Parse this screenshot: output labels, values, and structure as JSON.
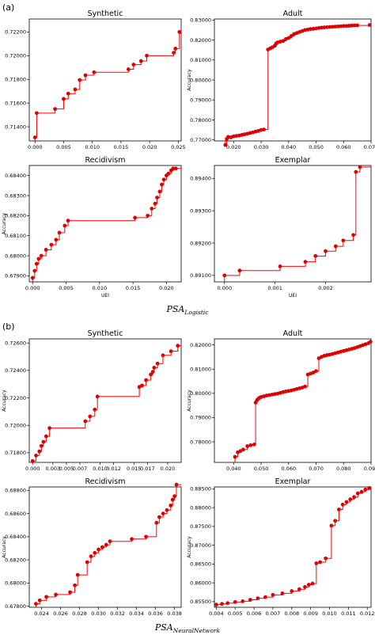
{
  "panels": [
    {
      "label": "(a)",
      "caption_main": "PSA",
      "caption_sub": "Logistic"
    },
    {
      "label": "(b)",
      "caption_main": "PSA",
      "caption_sub": "NeuralNetwork"
    }
  ],
  "style": {
    "line_color": "#ff0000",
    "marker_color": "#e00000"
  },
  "chart_data": [
    {
      "type": "line",
      "title": "Synthetic",
      "xlabel": "",
      "ylabel": "",
      "xlim": [
        -0.001,
        0.0255
      ],
      "ylim": [
        0.7128,
        0.7231
      ],
      "xticks": [
        0.0,
        0.005,
        0.01,
        0.015,
        0.02,
        0.025
      ],
      "xtick_labels": [
        "0.000",
        "0.005",
        "0.010",
        "0.015",
        "0.020",
        "0.025"
      ],
      "yticks": [
        0.714,
        0.716,
        0.718,
        0.72,
        0.722
      ],
      "ytick_labels": [
        "0.71400",
        "0.71600",
        "0.71800",
        "0.72000",
        "0.72200"
      ],
      "x": [
        0.0,
        0.0003,
        0.0035,
        0.005,
        0.0058,
        0.007,
        0.0078,
        0.0088,
        0.0103,
        0.0163,
        0.0172,
        0.0185,
        0.0195,
        0.0242,
        0.0245,
        0.0252
      ],
      "y": [
        0.7131,
        0.71515,
        0.7155,
        0.71635,
        0.7168,
        0.71715,
        0.71795,
        0.71835,
        0.7186,
        0.71885,
        0.71925,
        0.71955,
        0.72,
        0.72025,
        0.7206,
        0.722
      ]
    },
    {
      "type": "line",
      "title": "Adult",
      "xlabel": "",
      "ylabel": "Accuracy",
      "xlim": [
        0.013,
        0.07
      ],
      "ylim": [
        0.7695,
        0.8305
      ],
      "xticks": [
        0.02,
        0.03,
        0.04,
        0.05,
        0.06,
        0.07
      ],
      "xtick_labels": [
        "0.020",
        "0.030",
        "0.040",
        "0.050",
        "0.060",
        "0.070"
      ],
      "yticks": [
        0.77,
        0.78,
        0.79,
        0.8,
        0.81,
        0.82,
        0.83
      ],
      "ytick_labels": [
        "0.77000",
        "0.78000",
        "0.79000",
        "0.80000",
        "0.81000",
        "0.82000",
        "0.83000"
      ],
      "x": [
        0.017,
        0.0175,
        0.018,
        0.019,
        0.02,
        0.021,
        0.022,
        0.023,
        0.024,
        0.025,
        0.026,
        0.027,
        0.028,
        0.029,
        0.03,
        0.031,
        0.0325,
        0.0333,
        0.034,
        0.035,
        0.0355,
        0.036,
        0.037,
        0.038,
        0.039,
        0.04,
        0.041,
        0.042,
        0.043,
        0.044,
        0.045,
        0.046,
        0.047,
        0.048,
        0.049,
        0.05,
        0.051,
        0.052,
        0.053,
        0.054,
        0.055,
        0.056,
        0.057,
        0.058,
        0.059,
        0.06,
        0.061,
        0.062,
        0.063,
        0.064,
        0.065,
        0.0695
      ],
      "y": [
        0.7675,
        0.7705,
        0.7715,
        0.7713,
        0.7718,
        0.772,
        0.7722,
        0.7725,
        0.7728,
        0.7731,
        0.7735,
        0.7738,
        0.7742,
        0.7745,
        0.775,
        0.7752,
        0.8152,
        0.8158,
        0.8163,
        0.8172,
        0.8183,
        0.8188,
        0.8192,
        0.8195,
        0.8205,
        0.821,
        0.822,
        0.823,
        0.8235,
        0.824,
        0.8245,
        0.825,
        0.8252,
        0.8255,
        0.8256,
        0.8258,
        0.826,
        0.8262,
        0.8263,
        0.8264,
        0.8265,
        0.8266,
        0.8267,
        0.8268,
        0.8269,
        0.827,
        0.827,
        0.8271,
        0.8272,
        0.8273,
        0.8273,
        0.8275
      ]
    },
    {
      "type": "line",
      "title": "Recidivism",
      "xlabel": "UEI",
      "ylabel": "Accuracy",
      "xlim": [
        -0.0005,
        0.0222
      ],
      "ylim": [
        0.6787,
        0.6845
      ],
      "xticks": [
        0.0,
        0.005,
        0.01,
        0.015,
        0.02
      ],
      "xtick_labels": [
        "0.000",
        "0.005",
        "0.010",
        "0.015",
        "0.020"
      ],
      "yticks": [
        0.679,
        0.68,
        0.681,
        0.682,
        0.683,
        0.684
      ],
      "ytick_labels": [
        "0.67900",
        "0.68000",
        "0.68100",
        "0.68200",
        "0.68300",
        "0.68400"
      ],
      "x": [
        0.0,
        0.0003,
        0.0006,
        0.0009,
        0.0013,
        0.002,
        0.0028,
        0.0035,
        0.004,
        0.0048,
        0.0053,
        0.0153,
        0.0172,
        0.0178,
        0.0183,
        0.0186,
        0.019,
        0.0193,
        0.0196,
        0.02,
        0.0203,
        0.0207,
        0.021,
        0.0214
      ],
      "y": [
        0.6789,
        0.67925,
        0.6796,
        0.67985,
        0.68,
        0.6803,
        0.68055,
        0.6808,
        0.68115,
        0.6815,
        0.68175,
        0.6819,
        0.682,
        0.68235,
        0.6826,
        0.6829,
        0.6832,
        0.68355,
        0.6838,
        0.684,
        0.6841,
        0.68425,
        0.68435,
        0.68435
      ]
    },
    {
      "type": "line",
      "title": "Exemplar",
      "xlabel": "UEI",
      "ylabel": "",
      "xlim": [
        -0.0002,
        0.0029
      ],
      "ylim": [
        0.8908,
        0.8944
      ],
      "xticks": [
        0.0,
        0.001,
        0.002
      ],
      "xtick_labels": [
        "0.000",
        "0.001",
        "0.002"
      ],
      "yticks": [
        0.891,
        0.892,
        0.893,
        0.894
      ],
      "ytick_labels": [
        "0.89100",
        "0.89200",
        "0.89300",
        "0.89400"
      ],
      "x": [
        0.0,
        0.0003,
        0.0011,
        0.0016,
        0.0018,
        0.002,
        0.0022,
        0.00235,
        0.00255,
        0.0026,
        0.00268
      ],
      "y": [
        0.891,
        0.89115,
        0.89128,
        0.89142,
        0.8916,
        0.89175,
        0.8919,
        0.89208,
        0.89225,
        0.8942,
        0.89435
      ]
    },
    {
      "type": "line",
      "title": "Synthetic",
      "xlabel": "",
      "ylabel": "Accuracy",
      "xlim": [
        -0.0005,
        0.022
      ],
      "ylim": [
        0.7173,
        0.7263
      ],
      "xticks": [
        0.0,
        0.003,
        0.005,
        0.007,
        0.01,
        0.012,
        0.015,
        0.017,
        0.02
      ],
      "xtick_labels": [
        "0.000",
        "0.003",
        "0.005",
        "0.007",
        "0.010",
        "0.012",
        "0.015",
        "0.017",
        "0.020"
      ],
      "yticks": [
        0.718,
        0.72,
        0.722,
        0.724,
        0.726
      ],
      "ytick_labels": [
        "0.71800",
        "0.72000",
        "0.72200",
        "0.72400",
        "0.72600"
      ],
      "x": [
        0.0,
        0.0005,
        0.001,
        0.0013,
        0.0016,
        0.002,
        0.0025,
        0.0078,
        0.0085,
        0.0092,
        0.0096,
        0.0158,
        0.0162,
        0.0168,
        0.0175,
        0.0178,
        0.018,
        0.0185,
        0.0193,
        0.0205,
        0.0215
      ],
      "y": [
        0.7174,
        0.7178,
        0.7181,
        0.7185,
        0.7188,
        0.7192,
        0.7198,
        0.7203,
        0.72065,
        0.72115,
        0.7221,
        0.7228,
        0.7229,
        0.7233,
        0.7237,
        0.7239,
        0.7242,
        0.7245,
        0.7251,
        0.7254,
        0.7258
      ]
    },
    {
      "type": "line",
      "title": "Adult",
      "xlabel": "",
      "ylabel": "Accuracy",
      "xlim": [
        0.033,
        0.09
      ],
      "ylim": [
        0.7715,
        0.8225
      ],
      "xticks": [
        0.04,
        0.05,
        0.06,
        0.07,
        0.08,
        0.09
      ],
      "xtick_labels": [
        "0.040",
        "0.050",
        "0.060",
        "0.070",
        "0.080",
        "0.090"
      ],
      "yticks": [
        0.78,
        0.79,
        0.8,
        0.81,
        0.82
      ],
      "ytick_labels": [
        "0.78000",
        "0.79000",
        "0.80000",
        "0.81000",
        "0.82000"
      ],
      "x": [
        0.0405,
        0.0415,
        0.0425,
        0.0435,
        0.045,
        0.0462,
        0.0475,
        0.048,
        0.0485,
        0.049,
        0.0495,
        0.05,
        0.051,
        0.052,
        0.053,
        0.054,
        0.055,
        0.056,
        0.057,
        0.058,
        0.059,
        0.06,
        0.061,
        0.062,
        0.063,
        0.064,
        0.065,
        0.066,
        0.067,
        0.068,
        0.069,
        0.07,
        0.071,
        0.072,
        0.073,
        0.074,
        0.075,
        0.076,
        0.077,
        0.078,
        0.079,
        0.08,
        0.081,
        0.082,
        0.083,
        0.084,
        0.085,
        0.086,
        0.087,
        0.088,
        0.089,
        0.0898
      ],
      "y": [
        0.7738,
        0.7757,
        0.7762,
        0.7768,
        0.7782,
        0.7786,
        0.7789,
        0.7962,
        0.7972,
        0.7978,
        0.7982,
        0.7985,
        0.7988,
        0.7991,
        0.7993,
        0.7995,
        0.7997,
        0.7999,
        0.8002,
        0.8005,
        0.8008,
        0.801,
        0.8012,
        0.8015,
        0.8018,
        0.8021,
        0.8024,
        0.8028,
        0.8078,
        0.8082,
        0.8086,
        0.8092,
        0.8145,
        0.8151,
        0.8155,
        0.8158,
        0.816,
        0.8163,
        0.8166,
        0.8169,
        0.8172,
        0.8175,
        0.8178,
        0.8181,
        0.8184,
        0.8187,
        0.8191,
        0.8195,
        0.8199,
        0.8203,
        0.8207,
        0.8213
      ]
    },
    {
      "type": "line",
      "title": "Recidivism",
      "xlabel": "",
      "ylabel": "Accuracy",
      "xlim": [
        0.0227,
        0.0387
      ],
      "ylim": [
        0.6779,
        0.6883
      ],
      "xticks": [
        0.024,
        0.026,
        0.028,
        0.03,
        0.032,
        0.034,
        0.036,
        0.038
      ],
      "xtick_labels": [
        "0.024",
        "0.026",
        "0.028",
        "0.030",
        "0.032",
        "0.034",
        "0.036",
        "0.038"
      ],
      "yticks": [
        0.678,
        0.68,
        0.682,
        0.684,
        0.686,
        0.688
      ],
      "ytick_labels": [
        "0.67800",
        "0.68000",
        "0.68200",
        "0.68400",
        "0.68600",
        "0.68800"
      ],
      "x": [
        0.0234,
        0.0238,
        0.0245,
        0.0255,
        0.027,
        0.0275,
        0.0278,
        0.0288,
        0.0292,
        0.0296,
        0.03,
        0.0304,
        0.0308,
        0.0312,
        0.0335,
        0.035,
        0.0361,
        0.0364,
        0.0368,
        0.0372,
        0.0376,
        0.0378,
        0.038,
        0.0382
      ],
      "y": [
        0.6782,
        0.6785,
        0.6788,
        0.679,
        0.6792,
        0.6798,
        0.6807,
        0.6818,
        0.6823,
        0.6826,
        0.6829,
        0.6831,
        0.6833,
        0.6836,
        0.6838,
        0.684,
        0.6852,
        0.6857,
        0.686,
        0.6863,
        0.6867,
        0.6872,
        0.6875,
        0.6885
      ]
    },
    {
      "type": "line",
      "title": "Exemplar",
      "xlabel": "",
      "ylabel": "Accuracy",
      "xlim": [
        0.0039,
        0.0122
      ],
      "ylim": [
        0.8535,
        0.8855
      ],
      "xticks": [
        0.004,
        0.005,
        0.006,
        0.007,
        0.008,
        0.009,
        0.01,
        0.011,
        0.012
      ],
      "xtick_labels": [
        "0.004",
        "0.005",
        "0.006",
        "0.007",
        "0.008",
        "0.009",
        "0.010",
        "0.011",
        "0.012"
      ],
      "yticks": [
        0.855,
        0.86,
        0.865,
        0.87,
        0.875,
        0.88,
        0.885
      ],
      "ytick_labels": [
        "0.85500",
        "0.86000",
        "0.86500",
        "0.87000",
        "0.87500",
        "0.88000",
        "0.88500"
      ],
      "x": [
        0.004,
        0.0043,
        0.0046,
        0.005,
        0.0054,
        0.0058,
        0.0062,
        0.0066,
        0.007,
        0.0075,
        0.008,
        0.0084,
        0.0087,
        0.0089,
        0.0091,
        0.0093,
        0.0095,
        0.0098,
        0.0101,
        0.0103,
        0.0105,
        0.0107,
        0.0109,
        0.0111,
        0.0113,
        0.0115,
        0.0117,
        0.0119,
        0.0121
      ],
      "y": [
        0.8542,
        0.8544,
        0.8546,
        0.8549,
        0.8551,
        0.8555,
        0.8559,
        0.8562,
        0.8568,
        0.8572,
        0.8578,
        0.8583,
        0.8589,
        0.8595,
        0.8598,
        0.8652,
        0.8655,
        0.8665,
        0.8752,
        0.8765,
        0.8795,
        0.8808,
        0.8815,
        0.8822,
        0.8828,
        0.8838,
        0.8842,
        0.8848,
        0.8852
      ]
    }
  ]
}
